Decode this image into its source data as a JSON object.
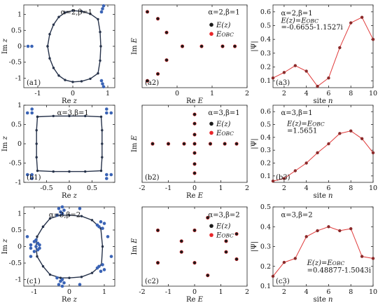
{
  "colors": {
    "spectrum_z": "#3a63b5",
    "contour": "#26324a",
    "contour_points": "#26324a",
    "e_z": "#1a1a1a",
    "e_obc": "#e8262a",
    "wave": "#e03a3a",
    "wave_points": "#8b2a2a"
  },
  "chart_data": [
    {
      "id": "a1",
      "type": "scatter",
      "panel_label": "(a1)",
      "annotation": "α=2,β=1",
      "xlabel": "Re z",
      "ylabel": "Im z",
      "xlim": [
        -1.4,
        1.2
      ],
      "ylim": [
        -1.3,
        1.3
      ],
      "xticks": [
        -1,
        0,
        1
      ],
      "yticks": [
        -1,
        -0.5,
        0,
        0.5,
        1
      ],
      "xticklabels": [
        "-1",
        "0",
        "1"
      ],
      "yticklabels": [
        "-1",
        "-0.5",
        "0",
        "0.5",
        "1"
      ],
      "contour": {
        "x": [
          -0.72,
          -0.66,
          -0.55,
          -0.4,
          -0.22,
          0.0,
          0.25,
          0.5,
          0.72,
          0.78,
          0.8,
          0.78,
          0.72,
          0.5,
          0.25,
          0.0,
          -0.22,
          -0.4,
          -0.55,
          -0.66,
          -0.72
        ],
        "y": [
          0.0,
          0.38,
          0.68,
          0.92,
          1.06,
          1.12,
          1.1,
          1.02,
          0.85,
          0.45,
          0.0,
          -0.45,
          -0.85,
          -1.02,
          -1.1,
          -1.12,
          -1.06,
          -0.92,
          -0.68,
          -0.38,
          0.0
        ]
      },
      "spectrum": {
        "x": [
          -1.28,
          -1.17,
          0.82,
          0.85,
          0.88,
          0.82,
          0.85,
          0.88
        ],
        "y": [
          0.0,
          0.0,
          1.08,
          1.18,
          1.27,
          -1.08,
          -1.18,
          -1.27
        ]
      }
    },
    {
      "id": "a2",
      "type": "scatter",
      "panel_label": "(a2)",
      "annotation": "α=2,β=1",
      "xlabel": "Re E",
      "ylabel": "Im E",
      "xlim": [
        -1,
        2
      ],
      "ylim": [
        -1.8,
        1.8
      ],
      "xticks": [
        0,
        1,
        2
      ],
      "yticks": [],
      "xticklabels": [
        "0",
        "1",
        "2"
      ],
      "yticklabels": [],
      "legend": [
        "E(z)",
        "EOBC"
      ],
      "legend_position": "top-right",
      "series": [
        {
          "name": "E(z)",
          "x": [
            -0.85,
            -0.55,
            -0.3,
            -0.3,
            -0.55,
            -0.85,
            0.15,
            0.7,
            1.3,
            1.65
          ],
          "y": [
            1.5,
            1.2,
            0.6,
            -0.6,
            -1.2,
            -1.5,
            0.0,
            0.0,
            0.0,
            0.0
          ]
        }
      ]
    },
    {
      "id": "a3",
      "type": "line",
      "panel_label": "(a3)",
      "annotation": "α=2,β=1",
      "text_lines": [
        "E(z)=EOBC",
        "=-0.6655-1.1527i"
      ],
      "xlabel": "site n",
      "ylabel": "|Ψ|",
      "xlim": [
        1,
        10
      ],
      "ylim": [
        0.05,
        0.65
      ],
      "xticks": [
        2,
        4,
        6,
        8,
        10
      ],
      "yticks": [
        0.1,
        0.2,
        0.3,
        0.4,
        0.5,
        0.6
      ],
      "xticklabels": [
        "2",
        "4",
        "6",
        "8",
        "10"
      ],
      "yticklabels": [
        "0.1",
        "0.2",
        "0.3",
        "0.4",
        "0.5",
        "0.6"
      ],
      "series": [
        {
          "name": "",
          "x": [
            1,
            2,
            3,
            4,
            5,
            6,
            7,
            8,
            9,
            10
          ],
          "y": [
            0.12,
            0.16,
            0.21,
            0.17,
            0.06,
            0.12,
            0.34,
            0.52,
            0.56,
            0.4
          ]
        }
      ]
    },
    {
      "id": "b1",
      "type": "scatter",
      "panel_label": "(b1)",
      "annotation": "α=3,β=1",
      "xlabel": "Re z",
      "ylabel": "Im z",
      "xlim": [
        -1,
        1
      ],
      "ylim": [
        -1,
        1
      ],
      "xticks": [
        -0.5,
        0,
        0.5
      ],
      "yticks": [
        -1,
        -0.5,
        0,
        0.5,
        1
      ],
      "xticklabels": [
        "-0.5",
        "0",
        "0.5"
      ],
      "yticklabels": [
        "-1",
        "-0.5",
        "0",
        "0.5",
        "1"
      ],
      "contour": {
        "x": [
          -0.7,
          -0.35,
          0.0,
          0.35,
          0.7,
          0.72,
          0.72,
          0.72,
          0.7,
          0.35,
          0.0,
          -0.35,
          -0.7,
          -0.72,
          -0.72,
          -0.72,
          -0.7
        ],
        "y": [
          0.7,
          0.72,
          0.72,
          0.72,
          0.7,
          0.35,
          0.0,
          -0.35,
          -0.7,
          -0.72,
          -0.72,
          -0.72,
          -0.7,
          -0.35,
          0.0,
          0.35,
          0.7
        ]
      },
      "spectrum": {
        "x": [
          -0.92,
          -0.82,
          -0.82,
          0.92,
          0.82,
          0.82,
          -0.92,
          -0.82,
          -0.82,
          0.92,
          0.82,
          0.82
        ],
        "y": [
          0.8,
          0.8,
          0.9,
          0.8,
          0.8,
          0.9,
          -0.8,
          -0.8,
          -0.9,
          -0.8,
          -0.8,
          -0.9
        ]
      }
    },
    {
      "id": "b2",
      "type": "scatter",
      "panel_label": "(b2)",
      "annotation": "α=3,β=1",
      "xlabel": "Re E",
      "ylabel": "Im E",
      "xlim": [
        -2,
        2
      ],
      "ylim": [
        -2.1,
        2.1
      ],
      "xticks": [
        -2,
        -1,
        0,
        1,
        2
      ],
      "yticks": [],
      "xticklabels": [
        "-2",
        "-1",
        "0",
        "1",
        "2"
      ],
      "yticklabels": [],
      "legend": [
        "E(z)",
        "EOBC"
      ],
      "legend_position": "top-right",
      "series": [
        {
          "name": "E(z)",
          "x": [
            -1.6,
            -1.0,
            -0.4,
            0.0,
            0.0,
            0.0,
            0.0,
            0.0,
            0.0,
            0.0,
            0.6,
            1.15,
            1.6
          ],
          "y": [
            0.0,
            0.0,
            0.0,
            1.6,
            1.1,
            0.5,
            0.0,
            -0.5,
            -1.1,
            -1.6,
            0.0,
            0.0,
            0.0
          ]
        }
      ]
    },
    {
      "id": "b3",
      "type": "line",
      "panel_label": "(b3)",
      "annotation": "α=3,β=1",
      "text_lines": [
        "E(z)=EOBC",
        "=1.5651"
      ],
      "xlabel": "site n",
      "ylabel": "|Ψ|",
      "xlim": [
        1,
        10
      ],
      "ylim": [
        0.05,
        0.65
      ],
      "xticks": [
        2,
        4,
        6,
        8,
        10
      ],
      "yticks": [
        0.1,
        0.2,
        0.3,
        0.4,
        0.5,
        0.6
      ],
      "xticklabels": [
        "2",
        "4",
        "6",
        "8",
        "10"
      ],
      "yticklabels": [
        "0.1",
        "0.2",
        "0.3",
        "0.4",
        "0.5",
        "0.6"
      ],
      "series": [
        {
          "name": "",
          "x": [
            1,
            2,
            3,
            4,
            5,
            6,
            7,
            8,
            9,
            10
          ],
          "y": [
            0.06,
            0.08,
            0.14,
            0.2,
            0.28,
            0.35,
            0.43,
            0.45,
            0.39,
            0.28
          ]
        }
      ]
    },
    {
      "id": "c1",
      "type": "scatter",
      "panel_label": "(c1)",
      "annotation": "α=3,β=2",
      "xlabel": "Re z",
      "ylabel": "Im z",
      "xlim": [
        -1.3,
        1.3
      ],
      "ylim": [
        -1.2,
        1.2
      ],
      "xticks": [
        -1,
        0,
        1
      ],
      "yticks": [
        -1,
        -0.5,
        0,
        0.5,
        1
      ],
      "xticklabels": [
        "-1",
        "0",
        "1"
      ],
      "yticklabels": [
        "-1",
        "-0.5",
        "0",
        "0.5",
        "1"
      ],
      "contour": {
        "x": [
          -0.75,
          -0.55,
          -0.25,
          0.0,
          0.35,
          0.65,
          0.9,
          0.95,
          0.92,
          0.65,
          0.35,
          0.0,
          -0.25,
          -0.55,
          -0.75,
          -0.92,
          -0.95,
          -0.92,
          -0.75
        ],
        "y": [
          0.6,
          0.85,
          0.95,
          0.95,
          0.92,
          0.8,
          0.55,
          0.0,
          -0.55,
          -0.8,
          -0.92,
          -0.95,
          -0.95,
          -0.85,
          -0.6,
          -0.3,
          0.0,
          0.3,
          0.6
        ]
      },
      "spectrum": {
        "x": [
          -0.9,
          -1.0,
          -1.1,
          -0.85,
          -0.95,
          -0.9,
          -1.0,
          -1.1,
          -0.85,
          -0.95,
          -0.35,
          -0.25,
          -0.15,
          -0.3,
          -0.2,
          -0.35,
          -0.25,
          -0.15,
          -0.3,
          -0.2,
          0.8,
          0.9,
          1.0,
          0.85,
          0.95,
          0.8,
          0.9,
          1.0,
          0.85,
          0.95,
          -1.2,
          -1.1,
          1.1,
          1.2,
          -0.2,
          0.3,
          -0.2,
          0.3
        ],
        "y": [
          0.1,
          0.15,
          0.05,
          -0.05,
          0.0,
          -0.1,
          -0.15,
          -0.05,
          0.05,
          0.2,
          0.95,
          1.05,
          1.1,
          1.15,
          1.0,
          -0.95,
          -1.05,
          -1.1,
          -1.15,
          -1.0,
          0.65,
          0.75,
          0.7,
          0.6,
          0.55,
          -0.65,
          -0.75,
          -0.7,
          -0.6,
          -0.55,
          0.3,
          -0.3,
          0.3,
          -0.3,
          1.2,
          1.15,
          -1.2,
          -1.15
        ]
      }
    },
    {
      "id": "c2",
      "type": "scatter",
      "panel_label": "(c2)",
      "annotation": "α=3,β=2",
      "xlabel": "Re E",
      "ylabel": "Im E",
      "xlim": [
        -2,
        2
      ],
      "ylim": [
        -2.2,
        2.2
      ],
      "xticks": [
        -2,
        -1,
        0,
        1,
        2
      ],
      "yticks": [],
      "xticklabels": [
        "-2",
        "-1",
        "0",
        "1",
        "2"
      ],
      "yticklabels": [],
      "legend": [
        "E(z)",
        "EOBC"
      ],
      "legend_position": "top-right",
      "series": [
        {
          "name": "E(z)",
          "x": [
            -1.4,
            -0.5,
            0.0,
            0.5,
            1.2,
            1.6,
            -1.4,
            -0.5,
            0.0,
            0.5,
            1.2,
            1.6
          ],
          "y": [
            0.9,
            0.3,
            0.9,
            1.6,
            0.3,
            0.7,
            -0.9,
            -0.3,
            -0.9,
            -1.6,
            -0.3,
            -0.7
          ]
        }
      ]
    },
    {
      "id": "c3",
      "type": "line",
      "panel_label": "(c3)",
      "annotation": "α=3,β=2",
      "text_lines": [
        "E(z)=EOBC",
        "=0.48877-1.5043i"
      ],
      "xlabel": "site n",
      "ylabel": "|Ψ|",
      "xlim": [
        1,
        10
      ],
      "ylim": [
        0.1,
        0.5
      ],
      "xticks": [
        2,
        4,
        6,
        8,
        10
      ],
      "yticks": [
        0.1,
        0.2,
        0.3,
        0.4,
        0.5
      ],
      "xticklabels": [
        "2",
        "4",
        "6",
        "8",
        "10"
      ],
      "yticklabels": [
        "0.1",
        "0.2",
        "0.3",
        "0.4",
        "0.5"
      ],
      "series": [
        {
          "name": "",
          "x": [
            1,
            2,
            3,
            4,
            5,
            6,
            7,
            8,
            9,
            10
          ],
          "y": [
            0.15,
            0.22,
            0.24,
            0.35,
            0.38,
            0.4,
            0.38,
            0.39,
            0.25,
            0.24
          ]
        }
      ]
    }
  ]
}
